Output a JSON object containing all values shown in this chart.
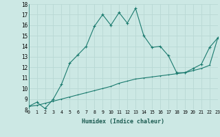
{
  "title": "",
  "xlabel": "Humidex (Indice chaleur)",
  "bg_color": "#cce8e4",
  "line_color": "#1a7a6e",
  "grid_color": "#b8d8d4",
  "x_upper": [
    0,
    1,
    2,
    3,
    4,
    5,
    6,
    7,
    8,
    9,
    10,
    11,
    12,
    13,
    14,
    15,
    16,
    17,
    18,
    19,
    20,
    21,
    22,
    23
  ],
  "y_upper": [
    8.3,
    8.7,
    8.1,
    9.0,
    10.4,
    12.4,
    13.2,
    14.0,
    15.9,
    17.0,
    16.0,
    17.2,
    16.2,
    17.6,
    15.0,
    13.9,
    14.0,
    13.1,
    11.5,
    11.5,
    11.9,
    12.3,
    13.9,
    14.8
  ],
  "x_lower": [
    0,
    1,
    2,
    3,
    4,
    5,
    6,
    7,
    8,
    9,
    10,
    11,
    12,
    13,
    14,
    15,
    16,
    17,
    18,
    19,
    20,
    21,
    22,
    23
  ],
  "y_lower": [
    8.3,
    8.4,
    8.6,
    8.8,
    9.0,
    9.2,
    9.4,
    9.6,
    9.8,
    10.0,
    10.2,
    10.5,
    10.7,
    10.9,
    11.0,
    11.1,
    11.2,
    11.3,
    11.4,
    11.5,
    11.7,
    11.9,
    12.2,
    14.8
  ],
  "ylim": [
    8,
    18
  ],
  "xlim": [
    0,
    23
  ],
  "yticks": [
    8,
    9,
    10,
    11,
    12,
    13,
    14,
    15,
    16,
    17,
    18
  ],
  "xticks": [
    0,
    1,
    2,
    3,
    4,
    5,
    6,
    7,
    8,
    9,
    10,
    11,
    12,
    13,
    14,
    15,
    16,
    17,
    18,
    19,
    20,
    21,
    22,
    23
  ]
}
